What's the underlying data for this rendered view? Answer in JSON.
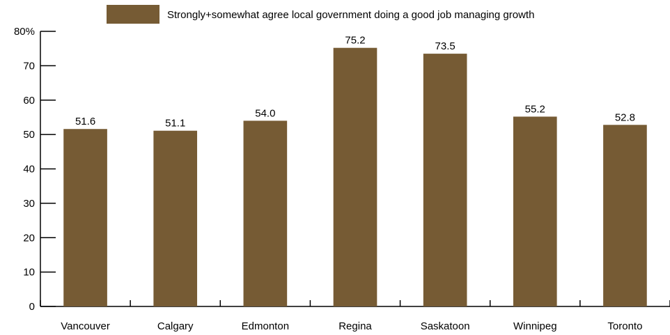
{
  "chart_data": {
    "type": "bar",
    "title": "",
    "xlabel": "",
    "ylabel": "",
    "categories": [
      "Vancouver",
      "Calgary",
      "Edmonton",
      "Regina",
      "Saskatoon",
      "Winnipeg",
      "Toronto"
    ],
    "series": [
      {
        "name": "Strongly+somewhat agree local government doing a good job managing growth",
        "values": [
          51.6,
          51.1,
          54.0,
          75.2,
          73.5,
          55.2,
          52.8
        ],
        "value_labels": [
          "51.6",
          "51.1",
          "54.0",
          "75.2",
          "73.5",
          "55.2",
          "52.8"
        ],
        "color": "#765B34"
      }
    ],
    "ylim": [
      0,
      80
    ],
    "yticks": [
      0,
      10,
      20,
      30,
      40,
      50,
      60,
      70,
      80
    ],
    "ytick_labels": [
      "0",
      "10",
      "20",
      "30",
      "40",
      "50",
      "60",
      "70",
      "80%"
    ],
    "grid": false,
    "legend_position": "top"
  }
}
